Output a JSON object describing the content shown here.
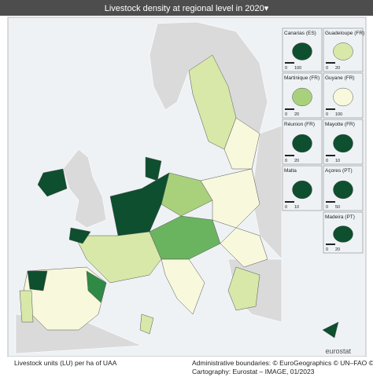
{
  "header": {
    "title": "Livestock density at regional level in 2020▾"
  },
  "insets": [
    {
      "label": "Canarias (ES)",
      "scale": [
        "0",
        "100"
      ]
    },
    {
      "label": "Guadeloupe (FR)",
      "scale": [
        "0",
        "20"
      ]
    },
    {
      "label": "Martinique (FR)",
      "scale": [
        "0",
        "20"
      ]
    },
    {
      "label": "Guyane (FR)",
      "scale": [
        "0",
        "100"
      ]
    },
    {
      "label": "Réunion (FR)",
      "scale": [
        "0",
        "20"
      ]
    },
    {
      "label": "Mayotte (FR)",
      "scale": [
        "0",
        "10"
      ]
    },
    {
      "label": "Malta",
      "scale": [
        "0",
        "10"
      ]
    },
    {
      "label": "Açores (PT)",
      "scale": [
        "0",
        "50"
      ]
    },
    {
      "label": "Madeira (PT)",
      "scale": [
        "0",
        "20"
      ]
    }
  ],
  "brand": "eurostat",
  "footer": {
    "unit": "Livestock units (LU) per ha of UAA",
    "credits": "Administrative boundaries: © EuroGeographics © UN–FAO © Turkstat",
    "cartography": "Cartography: Eurostat – IMAGE, 01/2023"
  }
}
